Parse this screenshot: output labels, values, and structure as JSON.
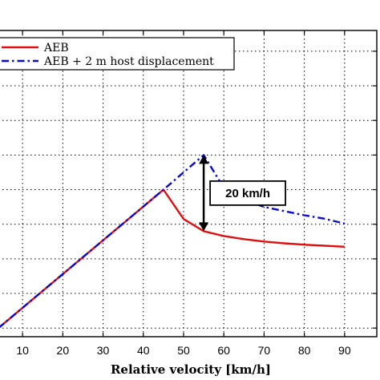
{
  "chart_data": {
    "type": "line",
    "xlabel": "Relative velocity [km/h]",
    "ylabel": "",
    "xlim": [
      4,
      98
    ],
    "ylim": [
      -2.5,
      86
    ],
    "xticks": [
      10,
      20,
      30,
      40,
      50,
      60,
      70,
      80,
      90
    ],
    "xtick_labels": [
      "10",
      "20",
      "30",
      "40",
      "50",
      "60",
      "70",
      "80",
      "90"
    ],
    "yticks": [
      0,
      10,
      20,
      30,
      40,
      50,
      60,
      70,
      80
    ],
    "grid": true,
    "legend_position": "top-left",
    "series": [
      {
        "name": "AEB",
        "color": "#e01010",
        "style": "solid",
        "x": [
          4,
          45,
          50,
          55,
          60,
          65,
          70,
          75,
          80,
          85,
          90
        ],
        "y": [
          0,
          40,
          31.5,
          28,
          26.6,
          25.7,
          25,
          24.5,
          24.1,
          23.8,
          23.5
        ]
      },
      {
        "name": "AEB + 2 m host displacement",
        "color": "#0a0ad0",
        "style": "dashdot",
        "x": [
          4,
          45,
          55,
          60,
          65,
          70,
          75,
          80,
          85,
          90
        ],
        "y": [
          0,
          40,
          50,
          40.5,
          37,
          35,
          33.8,
          32.6,
          31.6,
          30.2
        ]
      }
    ],
    "annotations": [
      {
        "text": "20 km/h",
        "arrow_x": 55,
        "arrow_y_from": 28,
        "arrow_y_to": 50
      }
    ]
  }
}
